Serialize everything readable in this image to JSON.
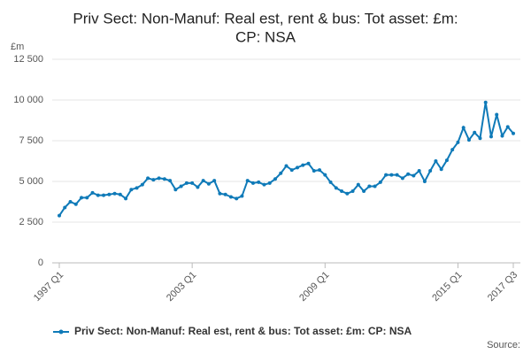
{
  "chart_data": {
    "type": "line",
    "title": [
      "Priv Sect: Non-Manuf: Real est, rent & bus: Tot asset: £m:",
      "CP: NSA"
    ],
    "y_label": "£m",
    "source": "Source:",
    "categories": [
      "1997 Q1",
      null,
      null,
      null,
      null,
      null,
      null,
      null,
      null,
      null,
      null,
      null,
      null,
      null,
      null,
      null,
      null,
      null,
      null,
      null,
      null,
      null,
      null,
      null,
      "2003 Q1",
      null,
      null,
      null,
      null,
      null,
      null,
      null,
      null,
      null,
      null,
      null,
      null,
      null,
      null,
      null,
      null,
      null,
      null,
      null,
      null,
      null,
      null,
      null,
      "2009 Q1",
      null,
      null,
      null,
      null,
      null,
      null,
      null,
      null,
      null,
      null,
      null,
      null,
      null,
      null,
      null,
      null,
      null,
      null,
      null,
      null,
      null,
      null,
      null,
      "2015 Q1",
      null,
      null,
      null,
      null,
      null,
      null,
      null,
      null,
      null,
      "2017 Q3"
    ],
    "series": [
      {
        "name": "Priv Sect: Non-Manuf: Real est, rent & bus: Tot asset: £m: CP: NSA",
        "color": "#0f7ab8",
        "values": [
          2900,
          3400,
          3750,
          3600,
          4000,
          4000,
          4300,
          4150,
          4150,
          4200,
          4250,
          4200,
          3950,
          4500,
          4600,
          4800,
          5200,
          5100,
          5200,
          5150,
          5050,
          4500,
          4700,
          4900,
          4900,
          4650,
          5050,
          4850,
          5050,
          4250,
          4200,
          4050,
          3950,
          4100,
          5050,
          4900,
          4950,
          4800,
          4900,
          5150,
          5500,
          5950,
          5700,
          5850,
          6000,
          6100,
          5650,
          5700,
          5400,
          4950,
          4600,
          4400,
          4250,
          4400,
          4800,
          4400,
          4700,
          4700,
          4950,
          5400,
          5400,
          5400,
          5200,
          5450,
          5350,
          5650,
          5000,
          5650,
          6250,
          5750,
          6300,
          6950,
          7400,
          8300,
          7550,
          8000,
          7650,
          9850,
          7750,
          9100,
          7800,
          8350,
          7950
        ]
      }
    ],
    "ylim": [
      0,
      12500
    ],
    "yticks": [
      0,
      {
        "value": 2500,
        "label": "2 500"
      },
      {
        "value": 5000,
        "label": "5 000"
      },
      {
        "value": 7500,
        "label": "7 500"
      },
      {
        "value": 10000,
        "label": "10 000"
      },
      {
        "value": 12500,
        "label": "12 500"
      }
    ],
    "grid": true
  }
}
